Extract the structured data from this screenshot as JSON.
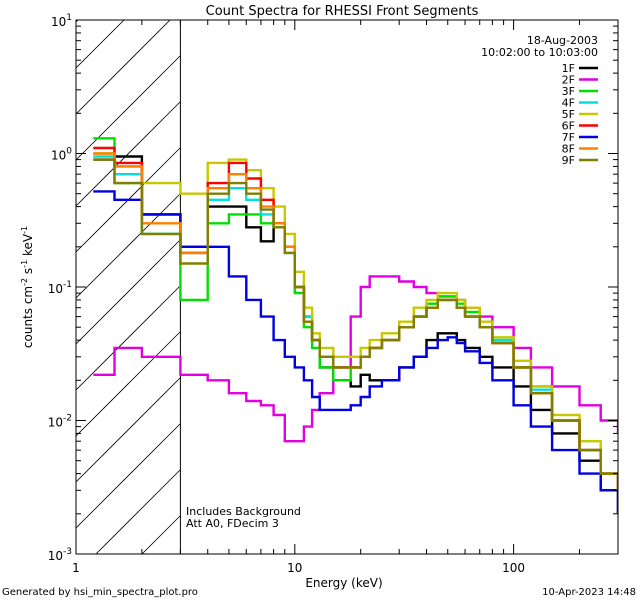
{
  "chart_data": {
    "type": "line",
    "title": "Count Spectra for RHESSI Front Segments",
    "xlabel": "Energy (keV)",
    "ylabel": {
      "base": "counts cm",
      "exp1": "-2",
      "mid": " s",
      "exp2": "-1",
      "unit": " keV",
      "exp3": "-1"
    },
    "xscale": "log",
    "yscale": "log",
    "xlim": [
      1,
      300
    ],
    "ylim": [
      0.001,
      10
    ],
    "xticks": [
      {
        "v": 1,
        "label": "1"
      },
      {
        "v": 10,
        "label": "10"
      },
      {
        "v": 100,
        "label": "100"
      }
    ],
    "yticks": [
      {
        "v": 10,
        "base": "10",
        "exp": "1"
      },
      {
        "v": 1,
        "base": "10",
        "exp": "0"
      },
      {
        "v": 0.1,
        "base": "10",
        "exp": "-1"
      },
      {
        "v": 0.01,
        "base": "10",
        "exp": "-2"
      },
      {
        "v": 0.001,
        "base": "10",
        "exp": "-3"
      }
    ],
    "hatched_region": {
      "x_from": 1,
      "x_to": 3
    },
    "date": "18-Aug-2003",
    "time_range": "10:02:00 to 10:03:00",
    "notes": [
      "Includes Background",
      "Att A0, FDecim 3"
    ],
    "footer_left": "Generated by hsi_min_spectra_plot.pro",
    "footer_right": "10-Apr-2023 14:48",
    "series": [
      {
        "name": "1F",
        "color": "#000000",
        "x": [
          1.2,
          1.5,
          2,
          3,
          4,
          5,
          6,
          7,
          8,
          9,
          10,
          11,
          12,
          13,
          15,
          18,
          20,
          22,
          25,
          30,
          35,
          40,
          45,
          50,
          55,
          60,
          70,
          80,
          100,
          120,
          150,
          200,
          250,
          300
        ],
        "y": [
          0.9,
          0.95,
          0.35,
          0.18,
          0.4,
          0.4,
          0.28,
          0.22,
          0.3,
          0.2,
          0.1,
          0.06,
          0.04,
          0.025,
          0.02,
          0.018,
          0.022,
          0.02,
          0.02,
          0.025,
          0.03,
          0.04,
          0.045,
          0.045,
          0.04,
          0.035,
          0.03,
          0.025,
          0.018,
          0.012,
          0.008,
          0.005,
          0.003,
          0.002
        ]
      },
      {
        "name": "2F",
        "color": "#e000e0",
        "x": [
          1.2,
          1.5,
          2,
          3,
          4,
          5,
          6,
          7,
          8,
          9,
          10,
          11,
          12,
          13,
          15,
          18,
          20,
          22,
          25,
          30,
          35,
          40,
          45,
          50,
          55,
          60,
          70,
          80,
          100,
          120,
          150,
          200,
          250,
          300
        ],
        "y": [
          0.022,
          0.035,
          0.03,
          0.022,
          0.02,
          0.016,
          0.014,
          0.013,
          0.011,
          0.007,
          0.007,
          0.009,
          0.012,
          0.016,
          0.025,
          0.06,
          0.1,
          0.12,
          0.12,
          0.11,
          0.1,
          0.09,
          0.085,
          0.085,
          0.08,
          0.07,
          0.06,
          0.05,
          0.035,
          0.025,
          0.018,
          0.013,
          0.01,
          0.008
        ]
      },
      {
        "name": "3F",
        "color": "#00e000",
        "x": [
          1.2,
          1.5,
          2,
          3,
          4,
          5,
          6,
          7,
          8,
          9,
          10,
          11,
          12,
          13,
          15,
          18,
          20,
          22,
          25,
          30,
          35,
          40,
          45,
          50,
          55,
          60,
          70,
          80,
          100,
          120,
          150,
          200,
          250,
          300
        ],
        "y": [
          1.3,
          0.6,
          0.25,
          0.08,
          0.3,
          0.35,
          0.35,
          0.3,
          0.28,
          0.18,
          0.09,
          0.05,
          0.035,
          0.025,
          0.02,
          0.025,
          0.03,
          0.035,
          0.04,
          0.05,
          0.06,
          0.075,
          0.085,
          0.085,
          0.075,
          0.065,
          0.05,
          0.04,
          0.025,
          0.018,
          0.01,
          0.006,
          0.004,
          0.003
        ]
      },
      {
        "name": "4F",
        "color": "#00e0e0",
        "x": [
          1.2,
          1.5,
          2,
          3,
          4,
          5,
          6,
          7,
          8,
          9,
          10,
          11,
          12,
          13,
          15,
          18,
          20,
          22,
          25,
          30,
          35,
          40,
          45,
          50,
          55,
          60,
          70,
          80,
          100,
          120,
          150,
          200,
          250,
          300
        ],
        "y": [
          0.95,
          0.7,
          0.25,
          0.2,
          0.45,
          0.55,
          0.45,
          0.35,
          0.3,
          0.2,
          0.1,
          0.06,
          0.04,
          0.03,
          0.025,
          0.025,
          0.03,
          0.035,
          0.04,
          0.05,
          0.06,
          0.07,
          0.08,
          0.08,
          0.07,
          0.06,
          0.05,
          0.04,
          0.025,
          0.017,
          0.01,
          0.006,
          0.004,
          0.003
        ]
      },
      {
        "name": "5F",
        "color": "#c8c800",
        "x": [
          1.2,
          1.5,
          2,
          3,
          4,
          5,
          6,
          7,
          8,
          9,
          10,
          11,
          12,
          13,
          15,
          18,
          20,
          22,
          25,
          30,
          35,
          40,
          45,
          50,
          55,
          60,
          70,
          80,
          100,
          120,
          150,
          200,
          250,
          300
        ],
        "y": [
          1.0,
          0.8,
          0.6,
          0.5,
          0.85,
          0.9,
          0.75,
          0.55,
          0.4,
          0.25,
          0.13,
          0.07,
          0.045,
          0.035,
          0.03,
          0.03,
          0.035,
          0.04,
          0.045,
          0.055,
          0.07,
          0.08,
          0.09,
          0.09,
          0.08,
          0.07,
          0.055,
          0.042,
          0.028,
          0.018,
          0.011,
          0.007,
          0.004,
          0.003
        ]
      },
      {
        "name": "6F",
        "color": "#ff0000",
        "x": [
          1.2,
          1.5,
          2,
          3,
          4,
          5,
          6,
          7,
          8,
          9,
          10,
          11,
          12,
          13,
          15,
          18,
          20,
          22,
          25,
          30,
          35,
          40,
          45,
          50,
          55,
          60,
          70,
          80,
          100,
          120,
          150,
          200,
          250,
          300
        ],
        "y": [
          1.1,
          0.85,
          0.35,
          0.2,
          0.6,
          0.85,
          0.65,
          0.45,
          0.3,
          0.2,
          0.1,
          0.055,
          0.04,
          0.03,
          0.025,
          0.025,
          0.03,
          0.035,
          0.04,
          0.05,
          0.06,
          0.07,
          0.08,
          0.08,
          0.07,
          0.06,
          0.05,
          0.038,
          0.025,
          0.016,
          0.01,
          0.006,
          0.004,
          0.003
        ]
      },
      {
        "name": "7F",
        "color": "#0000e0",
        "x": [
          1.2,
          1.5,
          2,
          3,
          4,
          5,
          6,
          7,
          8,
          9,
          10,
          11,
          12,
          13,
          15,
          18,
          20,
          22,
          25,
          30,
          35,
          40,
          45,
          50,
          55,
          60,
          70,
          80,
          100,
          120,
          150,
          200,
          250,
          300
        ],
        "y": [
          0.52,
          0.45,
          0.35,
          0.2,
          0.2,
          0.12,
          0.08,
          0.06,
          0.04,
          0.03,
          0.025,
          0.02,
          0.015,
          0.012,
          0.012,
          0.013,
          0.015,
          0.018,
          0.02,
          0.025,
          0.03,
          0.035,
          0.04,
          0.042,
          0.038,
          0.033,
          0.027,
          0.02,
          0.013,
          0.009,
          0.006,
          0.004,
          0.003,
          0.002
        ]
      },
      {
        "name": "8F",
        "color": "#ff8000",
        "x": [
          1.2,
          1.5,
          2,
          3,
          4,
          5,
          6,
          7,
          8,
          9,
          10,
          11,
          12,
          13,
          15,
          18,
          20,
          22,
          25,
          30,
          35,
          40,
          45,
          50,
          55,
          60,
          70,
          80,
          100,
          120,
          150,
          200,
          250,
          300
        ],
        "y": [
          1.0,
          0.8,
          0.3,
          0.18,
          0.55,
          0.7,
          0.55,
          0.4,
          0.3,
          0.2,
          0.1,
          0.055,
          0.04,
          0.03,
          0.025,
          0.025,
          0.03,
          0.035,
          0.04,
          0.05,
          0.06,
          0.07,
          0.08,
          0.08,
          0.07,
          0.06,
          0.05,
          0.038,
          0.025,
          0.016,
          0.01,
          0.006,
          0.004,
          0.003
        ]
      },
      {
        "name": "9F",
        "color": "#808000",
        "x": [
          1.2,
          1.5,
          2,
          3,
          4,
          5,
          6,
          7,
          8,
          9,
          10,
          11,
          12,
          13,
          15,
          18,
          20,
          22,
          25,
          30,
          35,
          40,
          45,
          50,
          55,
          60,
          70,
          80,
          100,
          120,
          150,
          200,
          250,
          300
        ],
        "y": [
          0.9,
          0.6,
          0.25,
          0.15,
          0.5,
          0.6,
          0.5,
          0.38,
          0.28,
          0.18,
          0.1,
          0.055,
          0.04,
          0.03,
          0.025,
          0.025,
          0.03,
          0.035,
          0.04,
          0.05,
          0.06,
          0.07,
          0.08,
          0.08,
          0.07,
          0.06,
          0.05,
          0.038,
          0.025,
          0.016,
          0.01,
          0.006,
          0.004,
          0.003
        ]
      }
    ]
  }
}
